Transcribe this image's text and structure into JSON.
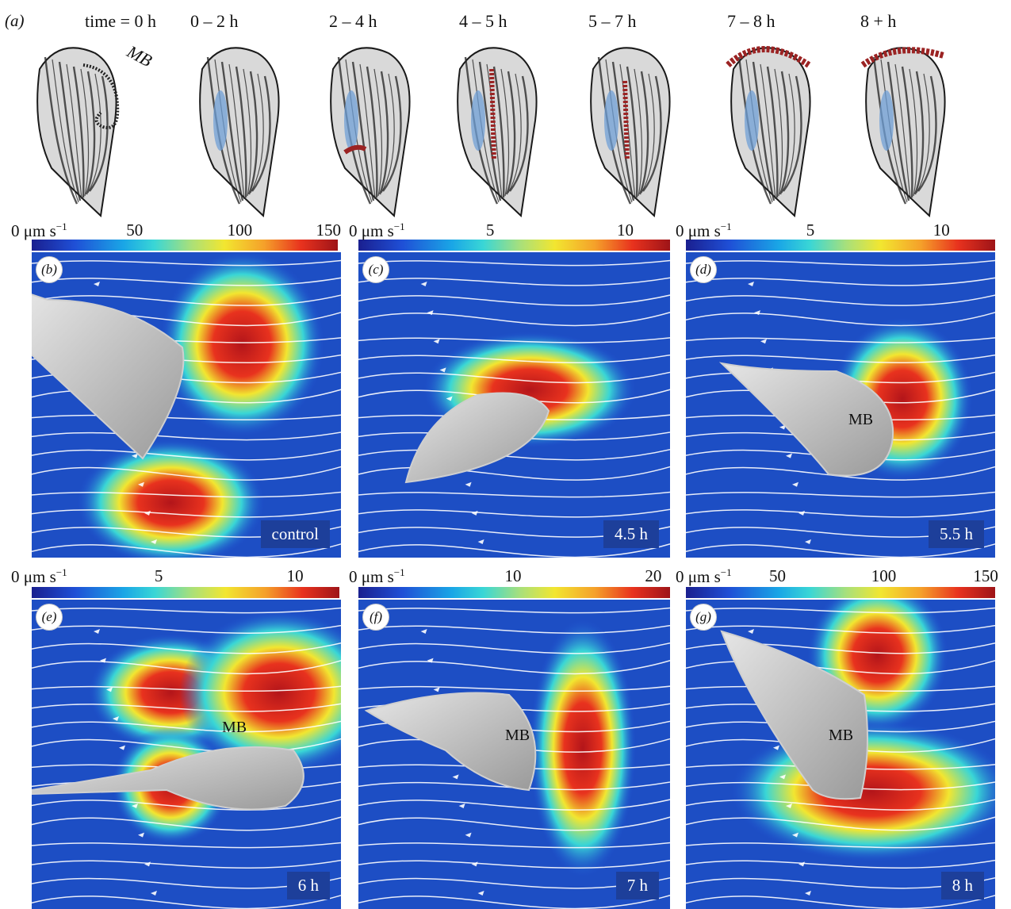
{
  "panel_a": {
    "label": "(a)",
    "mb_label": "MB",
    "time_labels": [
      "time = 0 h",
      "0 – 2 h",
      "2 – 4 h",
      "4 – 5 h",
      "5 – 7 h",
      "7 – 8 h",
      "8 + h"
    ]
  },
  "colorbars": [
    {
      "zero": "0 μm s",
      "ticks": [
        "50",
        "100",
        "150"
      ]
    },
    {
      "zero": "0 μm s",
      "ticks": [
        "5",
        "10"
      ]
    },
    {
      "zero": "0 μm s",
      "ticks": [
        "5",
        "10"
      ]
    },
    {
      "zero": "0 μm s",
      "ticks": [
        "5",
        "10"
      ]
    },
    {
      "zero": "0 μm s",
      "ticks": [
        "10",
        "20"
      ]
    },
    {
      "zero": "0 μm s",
      "ticks": [
        "50",
        "100",
        "150"
      ]
    }
  ],
  "units_exponent": "−1",
  "panels": [
    {
      "label": "b",
      "caption": "control",
      "mb": ""
    },
    {
      "label": "c",
      "caption": "4.5 h",
      "mb": ""
    },
    {
      "label": "d",
      "caption": "5.5 h",
      "mb": "MB"
    },
    {
      "label": "e",
      "caption": "6 h",
      "mb": "MB"
    },
    {
      "label": "f",
      "caption": "7 h",
      "mb": "MB"
    },
    {
      "label": "g",
      "caption": "8 h",
      "mb": "MB"
    }
  ],
  "colors": {
    "colormap": [
      "#1a1f8f",
      "#1f4fd6",
      "#1aa6e6",
      "#39d6d6",
      "#a9e07a",
      "#f2e630",
      "#f5a02a",
      "#e8321e",
      "#9e1418"
    ],
    "cilia_band": "#9b2323",
    "vacuole": "#6f9fd6"
  }
}
